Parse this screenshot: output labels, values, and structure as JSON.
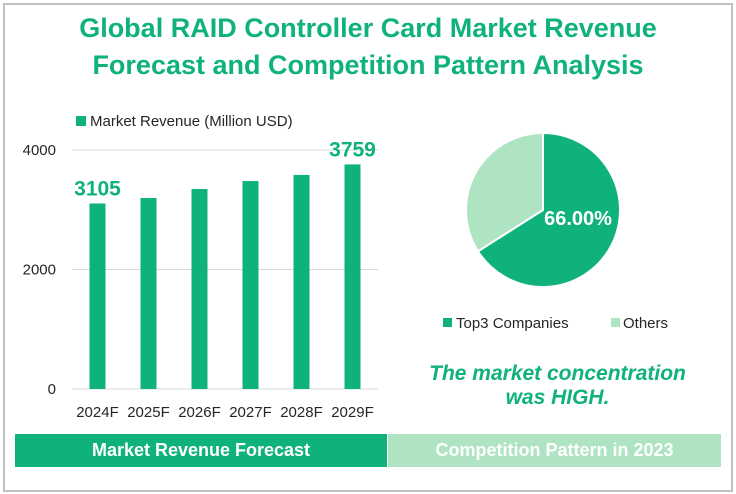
{
  "title_line1": "Global RAID Controller Card Market Revenue",
  "title_line2": "Forecast and Competition Pattern Analysis",
  "conclusion_line1": "The market concentration",
  "conclusion_line2": "was HIGH.",
  "banners": {
    "left": "Market Revenue Forecast",
    "right": "Competition Pattern in 2023"
  },
  "colors": {
    "primary": "#10b27c",
    "secondary": "#aee4c2",
    "grid": "#d9d9d9",
    "text": "#262626"
  },
  "chart_data": [
    {
      "type": "bar",
      "title": "",
      "legend": "Market Revenue (Million USD)",
      "legend_position": "top",
      "categories": [
        "2024F",
        "2025F",
        "2026F",
        "2027F",
        "2028F",
        "2029F"
      ],
      "values": [
        3105,
        3197,
        3347,
        3481,
        3582,
        3759
      ],
      "data_labels": [
        {
          "index": 0,
          "text": "3105"
        },
        {
          "index": 5,
          "text": "3759"
        }
      ],
      "yticks": [
        "0",
        "2000",
        "4000"
      ],
      "ylim": [
        0,
        4000
      ],
      "grid": true
    },
    {
      "type": "pie",
      "slices": [
        {
          "label": "Top3 Companies",
          "value": 66.0
        },
        {
          "label": "Others",
          "value": 34.0
        }
      ],
      "data_label": "66.00%",
      "legend_position": "bottom"
    }
  ]
}
